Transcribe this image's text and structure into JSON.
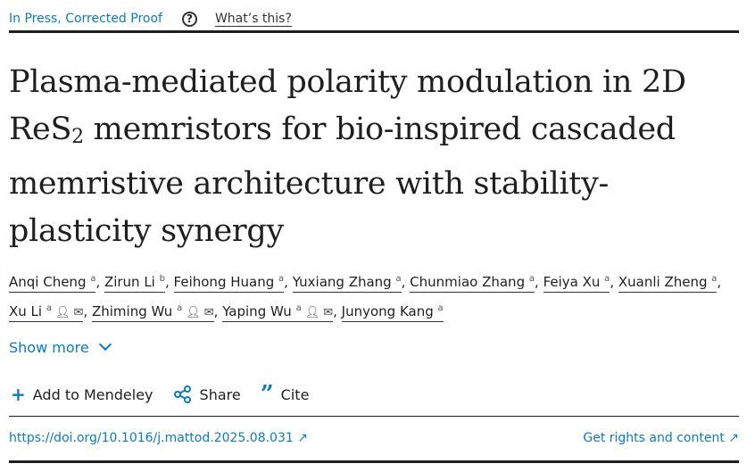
{
  "status": {
    "label": "In Press, Corrected Proof",
    "help_icon": "question-circle-icon",
    "whats_this": "What’s this?"
  },
  "title": {
    "part1": "Plasma-mediated polarity modulation in 2D ReS",
    "sub": "2",
    "part2": " memristors for bio-inspired cascaded memristive architecture with stability-plasticity synergy"
  },
  "authors": [
    {
      "name": "Anqi Cheng",
      "aff": "a"
    },
    {
      "name": "Zirun Li",
      "aff": "b"
    },
    {
      "name": "Feihong Huang",
      "aff": "a"
    },
    {
      "name": "Yuxiang Zhang",
      "aff": "a"
    },
    {
      "name": "Chunmiao Zhang",
      "aff": "a"
    },
    {
      "name": "Feiya Xu",
      "aff": "a"
    },
    {
      "name": "Xuanli Zheng",
      "aff": "a"
    },
    {
      "name": "Xu Li",
      "aff": "a",
      "corresponding": true
    },
    {
      "name": "Zhiming Wu",
      "aff": "a",
      "corresponding": true
    },
    {
      "name": "Yaping Wu",
      "aff": "a",
      "corresponding": true
    },
    {
      "name": "Junyong Kang",
      "aff": "a"
    }
  ],
  "show_more": "Show more",
  "actions": {
    "mendeley": "Add to Mendeley",
    "share": "Share",
    "cite": "Cite"
  },
  "doi": "https://doi.org/10.1016/j.mattod.2025.08.031",
  "rights": "Get rights and content",
  "colors": {
    "link": "#0c7dbb",
    "text": "#1f1f1f"
  }
}
